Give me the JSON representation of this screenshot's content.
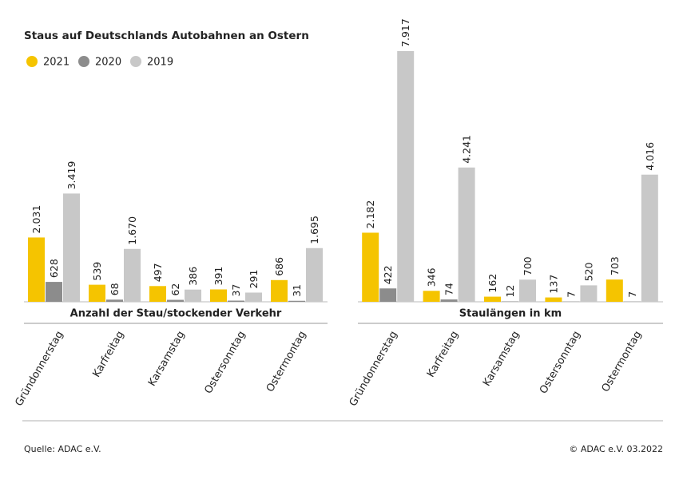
{
  "title": "Staus auf Deutschlands Autobahnen an Ostern",
  "source": "Quelle: ADAC e.V.",
  "copyright": "© ADAC e.V. 03.2022",
  "chart_data": [
    {
      "type": "bar",
      "x_label": "Anzahl der Stau/stockender Verkehr",
      "categories": [
        "Gründonnerstag",
        "Karfreitag",
        "Karsamstag",
        "Ostersonntag",
        "Ostermontag"
      ],
      "series": [
        {
          "name": "2021",
          "color": "#f5c400",
          "values": [
            2031,
            539,
            497,
            391,
            686
          ],
          "value_labels": [
            "2.031",
            "539",
            "497",
            "391",
            "686"
          ]
        },
        {
          "name": "2020",
          "color": "#8c8c8c",
          "values": [
            628,
            68,
            62,
            37,
            31
          ],
          "value_labels": [
            "628",
            "68",
            "62",
            "37",
            "31"
          ]
        },
        {
          "name": "2019",
          "color": "#c8c8c8",
          "values": [
            3419,
            1670,
            386,
            291,
            1695
          ],
          "value_labels": [
            "3.419",
            "1.670",
            "386",
            "291",
            "1.695"
          ]
        }
      ]
    },
    {
      "type": "bar",
      "x_label": "Staulängen in km",
      "categories": [
        "Gründonnerstag",
        "Karfreitag",
        "Karsamstag",
        "Ostersonntag",
        "Ostermontag"
      ],
      "series": [
        {
          "color": "#f5c400",
          "values": [
            2182,
            346,
            162,
            137,
            703
          ],
          "value_labels": [
            "2.182",
            "346",
            "162",
            "137",
            "703"
          ]
        },
        {
          "color": "#8c8c8c",
          "values": [
            422,
            74,
            12,
            7,
            7
          ],
          "value_labels": [
            "422",
            "74",
            "12",
            "7",
            "7"
          ]
        },
        {
          "color": "#c8c8c8",
          "values": [
            7917,
            4241,
            700,
            520,
            4016
          ],
          "value_labels": [
            "7.917",
            "4.241",
            "700",
            "520",
            "4.016"
          ]
        }
      ]
    }
  ]
}
